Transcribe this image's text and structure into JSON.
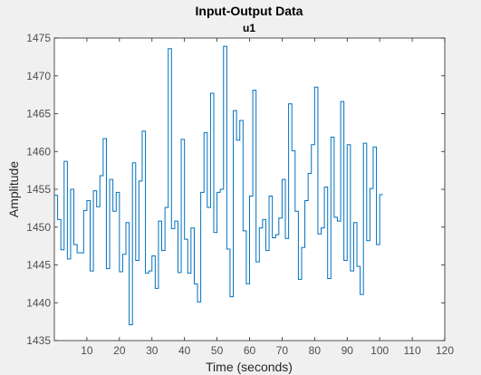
{
  "chart_data": {
    "type": "line",
    "title": "Input-Output Data",
    "subtitle": "u1",
    "xlabel": "Time (seconds)",
    "ylabel": "Amplitude",
    "xlim": [
      0,
      120
    ],
    "ylim": [
      1435,
      1475
    ],
    "x_ticks": [
      "10",
      "20",
      "30",
      "40",
      "50",
      "60",
      "70",
      "80",
      "90",
      "100",
      "110",
      "120"
    ],
    "y_ticks": [
      "1435",
      "1440",
      "1445",
      "1450",
      "1455",
      "1460",
      "1465",
      "1470",
      "1475"
    ],
    "grid": false,
    "step_style": "zero-order-hold",
    "series": [
      {
        "color": "#0072bd",
        "x": [
          0,
          1,
          2,
          3,
          4,
          5,
          6,
          7,
          8,
          9,
          10,
          11,
          12,
          13,
          14,
          15,
          16,
          17,
          18,
          19,
          20,
          21,
          22,
          23,
          24,
          25,
          26,
          27,
          28,
          29,
          30,
          31,
          32,
          33,
          34,
          35,
          36,
          37,
          38,
          39,
          40,
          41,
          42,
          43,
          44,
          45,
          46,
          47,
          48,
          49,
          50,
          51,
          52,
          53,
          54,
          55,
          56,
          57,
          58,
          59,
          60,
          61,
          62,
          63,
          64,
          65,
          66,
          67,
          68,
          69,
          70,
          71,
          72,
          73,
          74,
          75,
          76,
          77,
          78,
          79,
          80,
          81,
          82,
          83,
          84,
          85,
          86,
          87,
          88,
          89,
          90,
          91,
          92,
          93,
          94,
          95,
          96,
          97,
          98,
          99,
          100,
          101
        ],
        "y": [
          1454.2,
          1451,
          1447,
          1458.7,
          1445.8,
          1455,
          1447.7,
          1446.6,
          1446.6,
          1452.2,
          1453.5,
          1444.2,
          1454.8,
          1452.7,
          1456.8,
          1461.7,
          1444.5,
          1456.3,
          1452.1,
          1454.6,
          1444.1,
          1446.4,
          1450.6,
          1437.1,
          1458.5,
          1445.6,
          1456.1,
          1462.7,
          1443.9,
          1444.2,
          1446.2,
          1441.9,
          1450.8,
          1446.9,
          1452.6,
          1473.6,
          1449.8,
          1450.8,
          1444,
          1461.6,
          1448.4,
          1443.9,
          1449.9,
          1442.5,
          1440.1,
          1454.6,
          1462.5,
          1452.6,
          1467.7,
          1449.3,
          1454.6,
          1455,
          1473.9,
          1447.1,
          1440.8,
          1465.4,
          1461.5,
          1464.1,
          1449.5,
          1442.5,
          1454.1,
          1468.1,
          1445.4,
          1449.9,
          1451,
          1446.9,
          1454.1,
          1448.6,
          1449,
          1451.2,
          1456.3,
          1448.5,
          1466.3,
          1460.1,
          1452.1,
          1443.1,
          1447.3,
          1453.5,
          1457.1,
          1460.9,
          1468.5,
          1449.1,
          1449.9,
          1455.3,
          1443.2,
          1461.9,
          1451.3,
          1450.8,
          1466.6,
          1445.6,
          1460.9,
          1444.2,
          1450.6,
          1444.8,
          1441.1,
          1461.1,
          1448.2,
          1455.1,
          1460.6,
          1447.7,
          1454.3,
          1454.3
        ]
      }
    ]
  }
}
